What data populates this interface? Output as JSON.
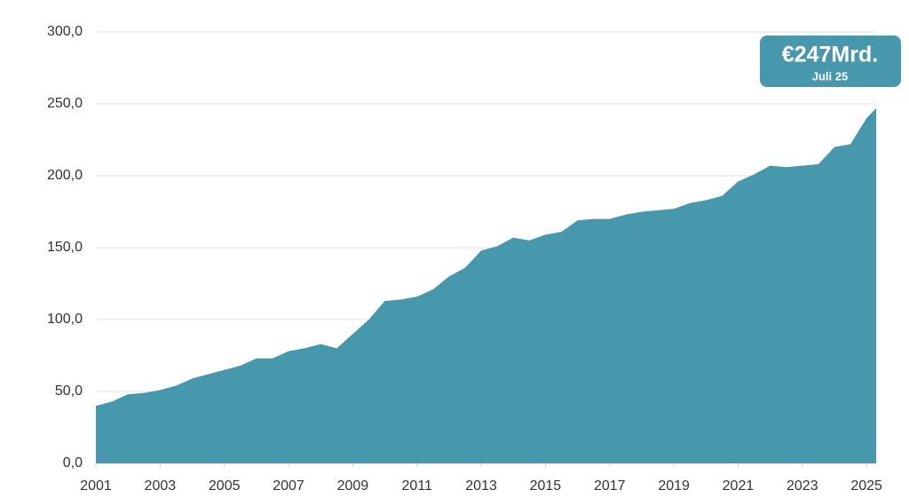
{
  "chart_data": {
    "type": "area",
    "x": [
      2001.0,
      2001.5,
      2002.0,
      2002.5,
      2003.0,
      2003.5,
      2004.0,
      2004.5,
      2005.0,
      2005.5,
      2006.0,
      2006.5,
      2007.0,
      2007.5,
      2008.0,
      2008.5,
      2009.0,
      2009.5,
      2010.0,
      2010.5,
      2011.0,
      2011.5,
      2012.0,
      2012.5,
      2013.0,
      2013.5,
      2014.0,
      2014.5,
      2015.0,
      2015.5,
      2016.0,
      2016.5,
      2017.0,
      2017.5,
      2018.0,
      2018.5,
      2019.0,
      2019.5,
      2020.0,
      2020.5,
      2021.0,
      2021.5,
      2022.0,
      2022.5,
      2023.0,
      2023.5,
      2024.0,
      2024.5,
      2025.0,
      2025.3
    ],
    "values": [
      40,
      43,
      48,
      49,
      51,
      54,
      59,
      62,
      65,
      68,
      73,
      73,
      78,
      80,
      83,
      80,
      90,
      100,
      113,
      114,
      116,
      121,
      130,
      136,
      148,
      151,
      157,
      155,
      159,
      161,
      169,
      170,
      170,
      173,
      175,
      176,
      177,
      181,
      183,
      186,
      196,
      201,
      207,
      206,
      207,
      208,
      220,
      222,
      240,
      247
    ],
    "color": "#4797ad",
    "xlim": [
      2001,
      2025.3
    ],
    "xticks": [
      2001,
      2003,
      2005,
      2007,
      2009,
      2011,
      2013,
      2015,
      2017,
      2019,
      2021,
      2023,
      2025
    ],
    "ylim": [
      0,
      300
    ],
    "yticks": [
      {
        "value": 0,
        "label": "0,0"
      },
      {
        "value": 50,
        "label": "50,0"
      },
      {
        "value": 100,
        "label": "100,0"
      },
      {
        "value": 150,
        "label": "150,0"
      },
      {
        "value": 200,
        "label": "200,0"
      },
      {
        "value": 250,
        "label": "250,0"
      },
      {
        "value": 300,
        "label": "300,0"
      }
    ],
    "grid": true,
    "annotation": {
      "value_label": "€247Mrd.",
      "date_label": "Juli 25"
    }
  }
}
